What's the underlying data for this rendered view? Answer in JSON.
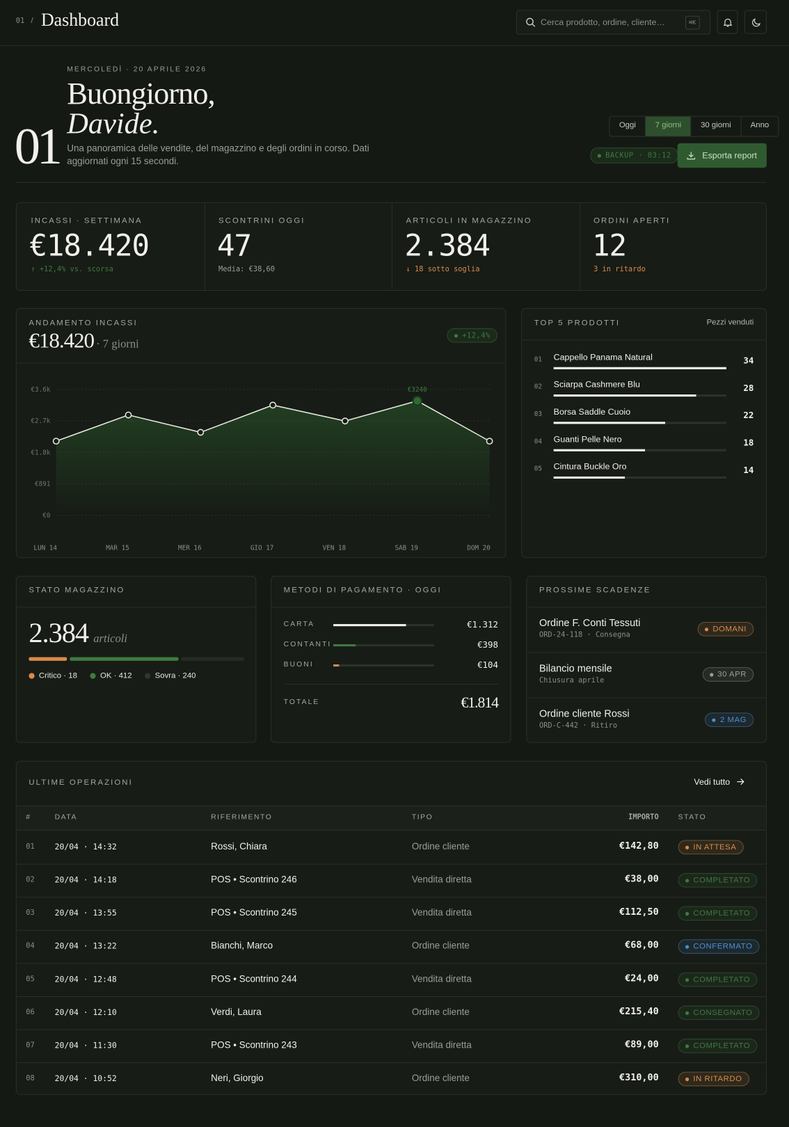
{
  "header": {
    "page_number": "01",
    "separator": "/",
    "title": "Dashboard",
    "search_placeholder": "Cerca prodotto, ordine, cliente…",
    "shortcut": "⌘K"
  },
  "hero": {
    "date": "MERCOLEDÌ · 20 APRILE 2026",
    "greeting": "Buongiorno,",
    "name": "Davide.",
    "number": "01",
    "description": "Una panoramica delle vendite, del magazzino e degli ordini in corso. Dati aggiornati ogni 15 secondi.",
    "periods": [
      "Oggi",
      "7 giorni",
      "30 giorni",
      "Anno"
    ],
    "active_period": 1,
    "backup": "BACKUP · 03:12",
    "export": "Esporta report"
  },
  "kpis": [
    {
      "label": "INCASSI · SETTIMANA",
      "value": "€18.420",
      "note": "↑ +12,4% vs. scorsa",
      "note_color": "#3f7a3f"
    },
    {
      "label": "SCONTRINI OGGI",
      "value": "47",
      "note": "Media: €38,60",
      "note_color": "#9a9e96"
    },
    {
      "label": "ARTICOLI IN MAGAZZINO",
      "value": "2.384",
      "note": "↓ 18 sotto soglia",
      "note_color": "#d98a4a"
    },
    {
      "label": "ORDINI APERTI",
      "value": "12",
      "note": "3 in ritardo",
      "note_color": "#d98a4a"
    }
  ],
  "revenue": {
    "title": "ANDAMENTO INCASSI",
    "total": "€18.420",
    "period": "· 7 giorni",
    "badge": "+12,4%",
    "chart": {
      "type": "line",
      "categories": [
        "LUN 14",
        "MAR 15",
        "MER 16",
        "GIO 17",
        "VEN 18",
        "SAB 19",
        "DOM 20"
      ],
      "values": [
        2100,
        2840,
        2350,
        3120,
        2670,
        3240,
        2100
      ],
      "value_labels": [
        null,
        null,
        null,
        null,
        null,
        "€3240",
        null
      ],
      "ylim": [
        0,
        3564
      ],
      "yticks": [
        {
          "value": 0,
          "label": "€0"
        },
        {
          "value": 891,
          "label": "€891"
        },
        {
          "value": 1782,
          "label": "€1.8k"
        },
        {
          "value": 2673,
          "label": "€2.7k"
        },
        {
          "value": 3564,
          "label": "€3.6k"
        }
      ],
      "color": "#e8e6df",
      "fill": "#2f6a30",
      "grid": true
    }
  },
  "top_products": {
    "title": "TOP 5 PRODOTTI",
    "subtitle": "Pezzi venduti",
    "ranks": [
      "01",
      "02",
      "03",
      "04",
      "05"
    ],
    "names": [
      "Cappello Panama Natural",
      "Sciarpa Cashmere Blu",
      "Borsa Saddle Cuoio",
      "Guanti Pelle Nero",
      "Cintura Buckle Oro"
    ],
    "values": [
      34,
      28,
      22,
      18,
      14
    ],
    "xlim": [
      0,
      34
    ],
    "color": "#f2f0ea"
  },
  "stock": {
    "title": "STATO MAGAZZINO",
    "value": "2.384",
    "unit": "articoli",
    "legend": [
      {
        "label": "Critico · 18",
        "color": "#d98a4a"
      },
      {
        "label": "OK · 412",
        "color": "#3f7a3f"
      },
      {
        "label": "Sovra · 240",
        "color": "#30362e"
      }
    ]
  },
  "payments": {
    "title": "METODI DI PAGAMENTO · OGGI",
    "methods": [
      "CARTA",
      "CONTANTI",
      "BUONI"
    ],
    "values": [
      1312,
      398,
      104
    ],
    "value_labels": [
      "€1.312",
      "€398",
      "€104"
    ],
    "colors": [
      "#f2f0ea",
      "#3f7a3f",
      "#d98a4a"
    ],
    "total_label": "TOTALE",
    "total": 1814,
    "total_value_label": "€1.814"
  },
  "deadlines": {
    "title": "PROSSIME SCADENZE",
    "items": [
      {
        "title": "Ordine F. Conti Tessuti",
        "detail": "ORD-24-118 · Consegna",
        "badge": "DOMANI",
        "color": "#d98a4a"
      },
      {
        "title": "Bilancio mensile",
        "detail": "Chiusura aprile",
        "badge": "30 APR",
        "color": "#9a9e96"
      },
      {
        "title": "Ordine cliente Rossi",
        "detail": "ORD-C-442 · Ritiro",
        "badge": "2 MAG",
        "color": "#4a8fd9"
      }
    ]
  },
  "operations": {
    "title": "ULTIME OPERAZIONI",
    "link": "Vedi tutto",
    "columns": [
      "#",
      "DATA",
      "RIFERIMENTO",
      "TIPO",
      "IMPORTO",
      "STATO"
    ],
    "rows": [
      [
        "01",
        "20/04 · 14:32",
        "Rossi, Chiara",
        "Ordine cliente",
        "€142,80",
        "IN ATTESA"
      ],
      [
        "02",
        "20/04 · 14:18",
        "POS • Scontrino 246",
        "Vendita diretta",
        "€38,00",
        "COMPLETATO"
      ],
      [
        "03",
        "20/04 · 13:55",
        "POS • Scontrino 245",
        "Vendita diretta",
        "€112,50",
        "COMPLETATO"
      ],
      [
        "04",
        "20/04 · 13:22",
        "Bianchi, Marco",
        "Ordine cliente",
        "€68,00",
        "CONFERMATO"
      ],
      [
        "05",
        "20/04 · 12:48",
        "POS • Scontrino 244",
        "Vendita diretta",
        "€24,00",
        "COMPLETATO"
      ],
      [
        "06",
        "20/04 · 12:10",
        "Verdi, Laura",
        "Ordine cliente",
        "€215,40",
        "CONSEGNATO"
      ],
      [
        "07",
        "20/04 · 11:30",
        "POS • Scontrino 243",
        "Vendita diretta",
        "€89,00",
        "COMPLETATO"
      ],
      [
        "08",
        "20/04 · 10:52",
        "Neri, Giorgio",
        "Ordine cliente",
        "€310,00",
        "IN RITARDO"
      ]
    ],
    "status_colors": [
      "#d98a4a",
      "#3f7a3f",
      "#3f7a3f",
      "#4a8fd9",
      "#3f7a3f",
      "#3f7a3f",
      "#3f7a3f",
      "#d98a4a"
    ]
  }
}
